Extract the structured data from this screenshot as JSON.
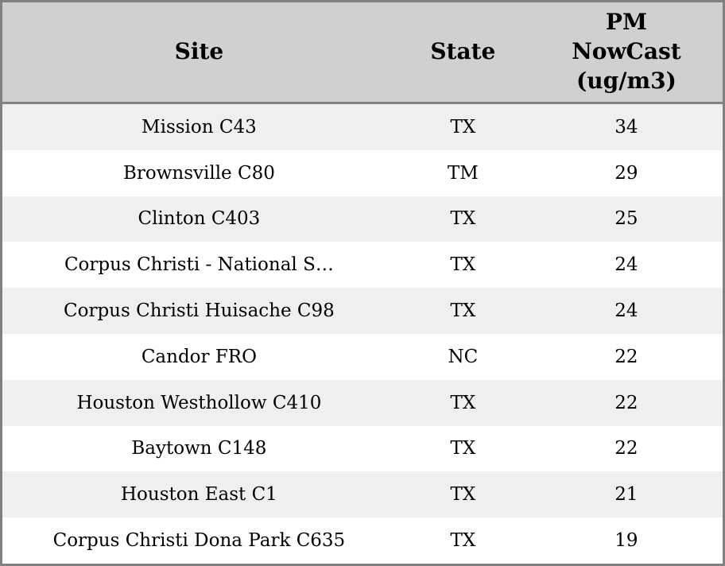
{
  "theme": {
    "header_bg": "#d0d0d0",
    "row_alt_bg": "#efefef",
    "row_bg": "#ffffff",
    "border_color": "#808080",
    "text_color": "#000000"
  },
  "table": {
    "columns": [
      {
        "label": "Site"
      },
      {
        "label": "State"
      },
      {
        "label": "PM\nNowCast\n(ug/m3)"
      }
    ],
    "rows": [
      {
        "site": "Mission C43",
        "state": "TX",
        "value": "34"
      },
      {
        "site": "Brownsville C80",
        "state": "TM",
        "value": "29"
      },
      {
        "site": "Clinton C403",
        "state": "TX",
        "value": "25"
      },
      {
        "site": "Corpus Christi - National S…",
        "state": "TX",
        "value": "24"
      },
      {
        "site": "Corpus Christi Huisache C98",
        "state": "TX",
        "value": "24"
      },
      {
        "site": "Candor FRO",
        "state": "NC",
        "value": "22"
      },
      {
        "site": "Houston Westhollow C410",
        "state": "TX",
        "value": "22"
      },
      {
        "site": "Baytown C148",
        "state": "TX",
        "value": "22"
      },
      {
        "site": "Houston East C1",
        "state": "TX",
        "value": "21"
      },
      {
        "site": "Corpus Christi Dona Park C635",
        "state": "TX",
        "value": "19"
      }
    ]
  }
}
